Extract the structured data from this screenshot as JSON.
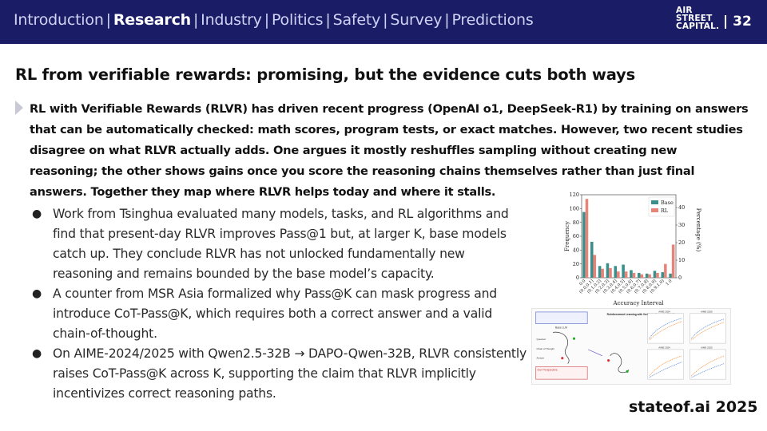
{
  "header": {
    "nav": [
      {
        "label": "Introduction",
        "active": false
      },
      {
        "label": "Research",
        "active": true
      },
      {
        "label": "Industry",
        "active": false
      },
      {
        "label": "Politics",
        "active": false
      },
      {
        "label": "Safety",
        "active": false
      },
      {
        "label": "Survey",
        "active": false
      },
      {
        "label": "Predictions",
        "active": false
      }
    ],
    "brand_line1": "AIR",
    "brand_line2": "STREET",
    "brand_line3": "CAPITAL.",
    "page_number": "| 32"
  },
  "slide": {
    "title": "RL from verifiable rewards: promising, but the evidence cuts both ways",
    "lead": "RL with Verifiable Rewards (RLVR) has driven recent progress (OpenAI o1, DeepSeek-R1) by training on answers that can be automatically checked: math scores, program tests, or exact matches. However, two recent studies disagree on what RLVR actually adds. One argues it mostly reshuffles sampling without creating new reasoning; the other shows gains once you score the reasoning chains themselves rather than just final answers. Together they map where RLVR helps today and where it stalls.",
    "bullets": [
      "Work from Tsinghua evaluated many models, tasks, and RL algorithms and find that present-day RLVR improves Pass@1 but, at larger K, base models catch up. They conclude RLVR has not unlocked fundamentally new reasoning and remains bounded by the base model’s capacity.",
      "A counter from MSR Asia formalized why Pass@K can mask progress and introduce CoT-Pass@K, which requires both a correct answer and a valid chain-of-thought.",
      "On AIME-2024/2025 with Qwen2.5-32B → DAPO-Qwen-32B, RLVR consistently raises CoT-Pass@K across K, supporting the claim that RLVR implicitly incentivizes correct reasoning paths."
    ],
    "footer": "stateof.ai 2025"
  },
  "chart_data": {
    "type": "bar",
    "categories": [
      "0.0",
      "(0.0,0.1]",
      "(0.1,0.2]",
      "(0.2,0.3]",
      "(0.3,0.4]",
      "(0.4,0.5]",
      "(0.5,0.6]",
      "(0.6,0.7]",
      "(0.7,0.8]",
      "(0.8,0.9]",
      "(0.9,1.0)",
      "1.0"
    ],
    "series": [
      {
        "name": "Base",
        "color": "#3a8f8a",
        "values": [
          95,
          52,
          17,
          21,
          17,
          19,
          11,
          7,
          6,
          10,
          8,
          6
        ]
      },
      {
        "name": "RL",
        "color": "#e8837a",
        "values": [
          114,
          33,
          13,
          14,
          9,
          9,
          7,
          5,
          5,
          7,
          20,
          48
        ]
      }
    ],
    "xlabel": "Accuracy Interval",
    "ylabel": "Frequency",
    "ylabel_right": "Percentage (%)",
    "ylim": [
      0,
      120
    ],
    "yticks": [
      0,
      20,
      40,
      60,
      80,
      100,
      120
    ],
    "yticks_right": [
      0,
      10,
      20,
      30,
      40
    ],
    "legend_position": "top-right",
    "grid": false
  },
  "diagram": {
    "box1_title": "Reinforcement Learning with Verifiable Rewards (RLVR)",
    "panel_titles": [
      "AIME 2024",
      "AIME 2025",
      "AIME 2024",
      "AIME 2025"
    ],
    "left_note": "Our Perspective",
    "row_labels": [
      "Question",
      "Chain of Thought",
      "Answer"
    ],
    "base_label": "Base LLM"
  }
}
